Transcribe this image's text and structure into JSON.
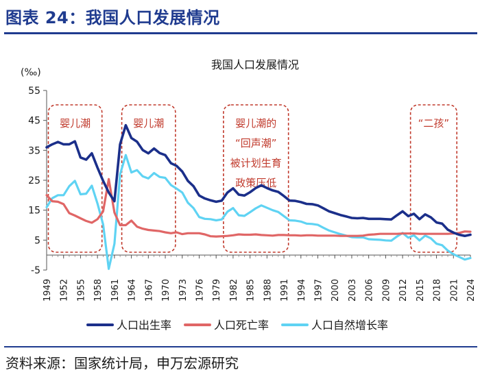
{
  "figure_title": "图表 24：我国人口发展情况",
  "source": "资料来源：国家统计局，申万宏源研究",
  "colors": {
    "brand": "#1f3b8f",
    "birth": "#1b2f8a",
    "death": "#e06666",
    "growth": "#5fd3f3",
    "annotation": "#c0392b"
  },
  "chart_data": {
    "type": "line",
    "title": "我国人口发展情况",
    "ylabel": "(‰)",
    "xlabel": "",
    "ylim": [
      -5,
      55
    ],
    "xlim": [
      1949,
      2024
    ],
    "y_ticks": [
      -5,
      5,
      15,
      25,
      35,
      45,
      55
    ],
    "y_tick_labels": [
      "-5",
      "5",
      "15",
      "25",
      "35",
      "45",
      "55"
    ],
    "x_ticks": [
      1949,
      1952,
      1955,
      1958,
      1961,
      1964,
      1967,
      1970,
      1973,
      1976,
      1979,
      1982,
      1985,
      1988,
      1991,
      1994,
      1997,
      2000,
      2003,
      2006,
      2009,
      2012,
      2015,
      2018,
      2021,
      2024
    ],
    "x_tick_labels": [
      "1949",
      "1952",
      "1955",
      "1958",
      "1961",
      "1964",
      "1967",
      "1970",
      "1973",
      "1976",
      "1979",
      "1982",
      "1985",
      "1988",
      "1991",
      "1994",
      "1997",
      "2000",
      "2003",
      "2006",
      "2009",
      "2012",
      "2015",
      "2018",
      "2021",
      "2024"
    ],
    "legend_position": "bottom",
    "x": [
      1949,
      1950,
      1951,
      1952,
      1953,
      1954,
      1955,
      1956,
      1957,
      1958,
      1959,
      1960,
      1961,
      1962,
      1963,
      1964,
      1965,
      1966,
      1967,
      1968,
      1969,
      1970,
      1971,
      1972,
      1973,
      1974,
      1975,
      1976,
      1977,
      1978,
      1979,
      1980,
      1981,
      1982,
      1983,
      1984,
      1985,
      1986,
      1987,
      1988,
      1989,
      1990,
      1991,
      1992,
      1993,
      1994,
      1995,
      1996,
      1997,
      1998,
      1999,
      2000,
      2001,
      2002,
      2003,
      2004,
      2005,
      2006,
      2007,
      2008,
      2009,
      2010,
      2011,
      2012,
      2013,
      2014,
      2015,
      2016,
      2017,
      2018,
      2019,
      2020,
      2021,
      2022,
      2023,
      2024
    ],
    "series": [
      {
        "name": "人口出生率",
        "color_key": "birth",
        "values": [
          36.0,
          37.0,
          37.8,
          37.0,
          37.0,
          38.0,
          32.6,
          31.9,
          34.0,
          29.2,
          24.8,
          20.9,
          18.0,
          37.0,
          43.4,
          39.1,
          37.9,
          35.1,
          34.0,
          35.6,
          34.1,
          33.4,
          30.7,
          29.8,
          27.9,
          24.8,
          23.0,
          19.9,
          18.9,
          18.3,
          17.8,
          18.2,
          20.9,
          22.3,
          20.2,
          19.9,
          21.0,
          22.4,
          23.3,
          22.4,
          21.6,
          21.1,
          19.7,
          18.2,
          18.1,
          17.7,
          17.1,
          17.0,
          16.6,
          15.6,
          14.6,
          14.0,
          13.4,
          12.9,
          12.4,
          12.3,
          12.4,
          12.1,
          12.1,
          12.1,
          12.0,
          11.9,
          13.3,
          14.6,
          13.0,
          13.8,
          12.0,
          13.6,
          12.6,
          10.9,
          10.5,
          8.5,
          7.5,
          6.8,
          6.4,
          6.8
        ]
      },
      {
        "name": "人口死亡率",
        "color_key": "death",
        "values": [
          20.0,
          18.0,
          17.8,
          17.0,
          14.0,
          13.2,
          12.3,
          11.4,
          10.8,
          12.0,
          14.6,
          25.4,
          14.2,
          10.0,
          10.0,
          11.5,
          9.5,
          8.8,
          8.4,
          8.2,
          8.0,
          7.6,
          7.3,
          7.6,
          7.0,
          7.3,
          7.3,
          7.3,
          6.9,
          6.3,
          6.2,
          6.3,
          6.4,
          6.6,
          6.9,
          6.8,
          6.8,
          6.9,
          6.7,
          6.6,
          6.5,
          6.7,
          6.7,
          6.6,
          6.6,
          6.5,
          6.6,
          6.6,
          6.5,
          6.5,
          6.5,
          6.5,
          6.4,
          6.4,
          6.4,
          6.4,
          6.5,
          6.8,
          6.9,
          7.1,
          7.1,
          7.1,
          7.1,
          7.2,
          7.2,
          7.2,
          7.1,
          7.1,
          7.1,
          7.1,
          7.1,
          7.1,
          7.2,
          7.4,
          7.9,
          7.8
        ]
      },
      {
        "name": "人口自然增长率",
        "color_key": "growth",
        "values": [
          16.0,
          19.0,
          20.0,
          20.0,
          23.0,
          24.8,
          20.3,
          20.5,
          23.2,
          17.2,
          10.2,
          -4.6,
          3.8,
          27.0,
          33.4,
          27.6,
          28.4,
          26.3,
          25.6,
          27.4,
          26.1,
          25.8,
          23.4,
          22.2,
          20.9,
          17.5,
          15.7,
          12.7,
          12.1,
          12.0,
          11.6,
          11.9,
          14.5,
          15.7,
          13.3,
          13.1,
          14.3,
          15.6,
          16.6,
          15.8,
          15.0,
          14.4,
          13.0,
          11.6,
          11.5,
          11.2,
          10.5,
          10.4,
          10.1,
          9.1,
          8.2,
          7.6,
          7.0,
          6.5,
          6.0,
          5.9,
          5.9,
          5.3,
          5.2,
          5.1,
          4.9,
          4.8,
          6.2,
          7.4,
          5.8,
          6.6,
          4.9,
          6.5,
          5.6,
          3.8,
          3.3,
          1.5,
          0.3,
          -0.6,
          -1.5,
          -1.0
        ]
      }
    ],
    "annotations": [
      {
        "lines": [
          "婴儿潮"
        ],
        "x_from": 1949.3,
        "x_to": 1958.8
      },
      {
        "lines": [
          "婴儿潮"
        ],
        "x_from": 1962.3,
        "x_to": 1971.8
      },
      {
        "lines": [
          "婴儿潮的",
          "“回声潮”",
          "被计划生育",
          "政策压低"
        ],
        "x_from": 1980.3,
        "x_to": 1991.8
      },
      {
        "lines": [
          "“二孩”"
        ],
        "x_from": 2013.4,
        "x_to": 2021.6
      }
    ]
  }
}
